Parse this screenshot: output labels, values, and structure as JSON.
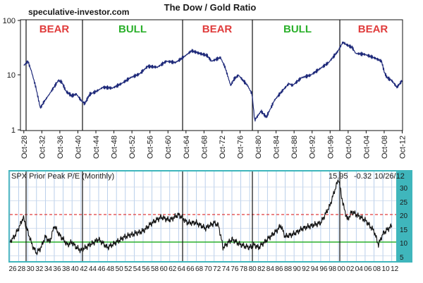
{
  "site": "speculative-investor.com",
  "charts": [
    {
      "title": "The Dow / Gold Ratio",
      "y_ticks": [
        "100",
        "10",
        "1"
      ],
      "x_ticks": [
        "Oct-28",
        "Oct-32",
        "Oct-36",
        "Oct-40",
        "Oct-44",
        "Oct-48",
        "Oct-52",
        "Oct-56",
        "Oct-60",
        "Oct-64",
        "Oct-68",
        "Oct-72",
        "Oct-76",
        "Oct-80",
        "Oct-84",
        "Oct-88",
        "Oct-92",
        "Oct-96",
        "Oct-00",
        "Oct-04",
        "Oct-08",
        "Oct-12"
      ],
      "phases": [
        {
          "label": "BEAR",
          "color": "#e03c3c"
        },
        {
          "label": "BULL",
          "color": "#2bb02b"
        },
        {
          "label": "BEAR",
          "color": "#e03c3c"
        },
        {
          "label": "BULL",
          "color": "#2bb02b"
        },
        {
          "label": "BEAR",
          "color": "#e03c3c"
        }
      ]
    },
    {
      "legend": "SPX Prior Peak P/E (Monthly)",
      "latest_value": "15.95",
      "latest_change": "-0.32",
      "latest_date": "10/26/12",
      "y_ticks": [
        "30",
        "25",
        "20",
        "15",
        "10",
        "5"
      ],
      "x_ticks": [
        "26",
        "28",
        "30",
        "32",
        "34",
        "36",
        "38",
        "40",
        "42",
        "44",
        "46",
        "48",
        "50",
        "52",
        "54",
        "56",
        "58",
        "60",
        "62",
        "64",
        "66",
        "68",
        "70",
        "72",
        "74",
        "76",
        "78",
        "80",
        "82",
        "84",
        "86",
        "88",
        "90",
        "92",
        "94",
        "96",
        "98",
        "00",
        "02",
        "04",
        "06",
        "08",
        "10",
        "12"
      ]
    }
  ],
  "chart_data": [
    {
      "type": "line",
      "title": "The Dow / Gold Ratio",
      "y_scale": "log",
      "ylim": [
        1,
        100
      ],
      "grid": false,
      "series": [
        {
          "color": "#1f2a7a",
          "x": [
            "1928-10",
            "1929-09",
            "1930-06",
            "1931-06",
            "1932-06",
            "1933-03",
            "1934-06",
            "1935-06",
            "1936-06",
            "1937-03",
            "1938-03",
            "1939-06",
            "1940-06",
            "1941-06",
            "1942-04",
            "1943-06",
            "1944-10",
            "1946-05",
            "1948-06",
            "1950-06",
            "1952-06",
            "1954-06",
            "1956-04",
            "1958-06",
            "1960-06",
            "1962-06",
            "1964-06",
            "1966-01",
            "1967-10",
            "1969-06",
            "1970-06",
            "1972-06",
            "1973-06",
            "1974-09",
            "1975-06",
            "1976-06",
            "1977-06",
            "1978-06",
            "1979-06",
            "1980-01",
            "1981-06",
            "1982-08",
            "1984-06",
            "1986-06",
            "1987-08",
            "1988-06",
            "1990-06",
            "1992-06",
            "1994-06",
            "1996-06",
            "1998-06",
            "1999-08",
            "2000-06",
            "2001-09",
            "2002-06",
            "2004-06",
            "2006-06",
            "2008-03",
            "2008-11",
            "2009-06",
            "2010-06",
            "2011-08",
            "2012-10"
          ],
          "values": [
            15,
            18,
            12,
            6,
            2.5,
            3.2,
            4.5,
            6,
            8,
            7.5,
            5,
            4.2,
            4.5,
            3.5,
            3,
            4.5,
            5,
            6,
            5.8,
            7,
            9,
            10.5,
            14.5,
            14,
            18,
            17,
            22,
            28,
            25,
            23,
            18,
            21,
            14,
            6.5,
            8.5,
            10,
            8,
            6.5,
            4.5,
            1.5,
            2.2,
            1.7,
            3.5,
            5.5,
            7,
            6.5,
            9,
            10,
            13,
            17,
            27,
            40,
            36,
            32,
            25,
            24,
            21,
            18,
            11,
            9,
            8,
            6,
            8
          ]
        }
      ],
      "annotations": [
        "BEAR",
        "BULL",
        "BEAR",
        "BULL",
        "BEAR"
      ]
    },
    {
      "type": "line",
      "ylim": [
        5,
        35
      ],
      "grid": true,
      "series": [
        {
          "name": "SPX Prior Peak P/E (Monthly)",
          "color": "#111111",
          "x": [
            1926,
            1927,
            1928,
            1929,
            1930,
            1931,
            1932,
            1933,
            1934,
            1935,
            1936,
            1937,
            1938,
            1939,
            1940,
            1941,
            1942,
            1943,
            1944,
            1946,
            1948,
            1950,
            1952,
            1954,
            1956,
            1958,
            1960,
            1962,
            1964,
            1966,
            1968,
            1970,
            1972,
            1973,
            1974,
            1976,
            1978,
            1980,
            1981,
            1982,
            1984,
            1986,
            1987,
            1988,
            1990,
            1992,
            1994,
            1996,
            1998,
            1999,
            2000,
            2001,
            2002,
            2003,
            2004,
            2006,
            2008,
            2009,
            2010,
            2012
          ],
          "values": [
            10,
            12,
            15,
            19,
            14,
            9,
            6,
            8,
            12,
            10,
            16,
            13,
            11,
            9,
            10,
            8,
            7,
            8,
            9,
            11,
            8,
            10,
            12,
            13,
            14,
            17,
            19,
            18,
            20,
            17,
            17,
            15,
            17,
            16,
            8,
            11,
            9,
            8,
            9,
            8,
            11,
            14,
            16,
            12,
            13,
            15,
            16,
            17,
            23,
            28,
            33,
            24,
            18,
            21,
            20,
            18,
            14,
            9,
            13,
            16
          ]
        },
        {
          "name": "level 20",
          "color": "#e03c3c",
          "values": [
            20
          ]
        },
        {
          "name": "level 10",
          "color": "#2bb02b",
          "values": [
            10
          ]
        }
      ]
    }
  ]
}
